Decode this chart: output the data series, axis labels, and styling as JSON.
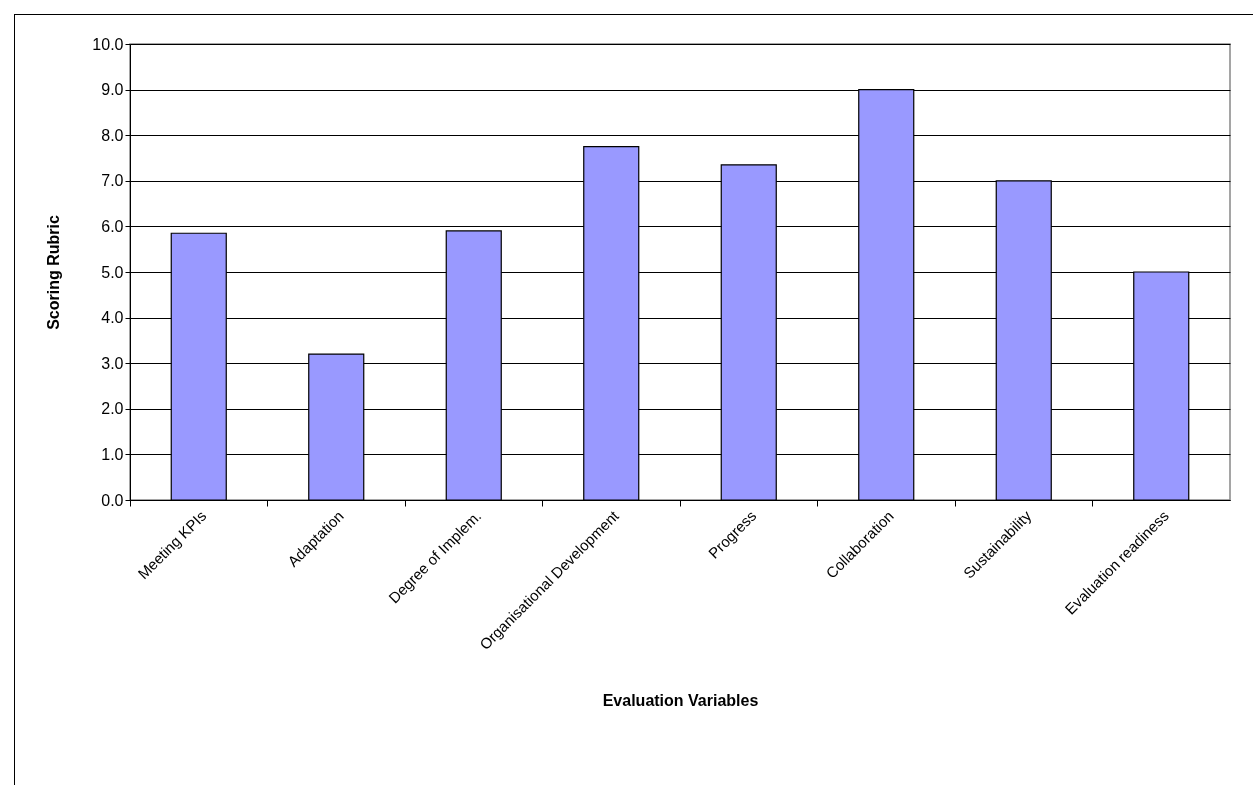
{
  "chart_data": {
    "type": "bar",
    "xlabel": "Evaluation Variables",
    "ylabel": "Scoring Rubric",
    "categories": [
      "Meeting KPIs",
      "Adaptation",
      "Degree of Implem.",
      "Organisational Development",
      "Progress",
      "Collaboration",
      "Sustainability",
      "Evaluation readiness"
    ],
    "values": [
      5.85,
      3.2,
      5.9,
      7.75,
      7.35,
      9.0,
      7.0,
      5.0
    ],
    "color": "#9999ff",
    "ylim": [
      0,
      10
    ],
    "yticks": [
      {
        "value": 0,
        "label": "0.0"
      },
      {
        "value": 1,
        "label": "1.0"
      },
      {
        "value": 2,
        "label": "2.0"
      },
      {
        "value": 3,
        "label": "3.0"
      },
      {
        "value": 4,
        "label": "4.0"
      },
      {
        "value": 5,
        "label": "5.0"
      },
      {
        "value": 6,
        "label": "6.0"
      },
      {
        "value": 7,
        "label": "7.0"
      },
      {
        "value": 8,
        "label": "8.0"
      },
      {
        "value": 9,
        "label": "9.0"
      },
      {
        "value": 10,
        "label": "10.0"
      }
    ],
    "grid": "y"
  }
}
